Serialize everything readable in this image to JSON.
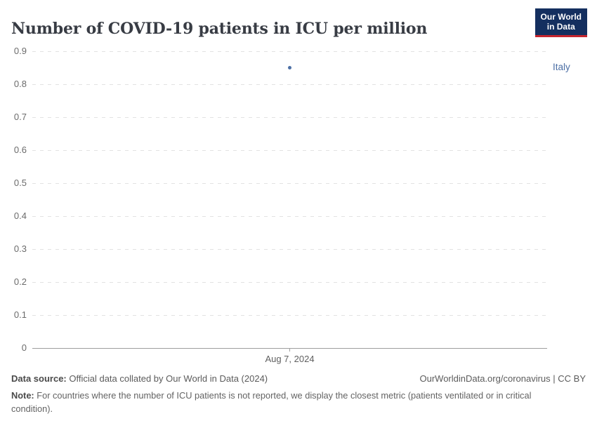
{
  "header": {
    "title": "Number of COVID-19 patients in ICU per million",
    "logo": {
      "line1": "Our World",
      "line2": "in Data"
    }
  },
  "chart_data": {
    "type": "scatter",
    "title": "Number of COVID-19 patients in ICU per million",
    "series": [
      {
        "name": "Italy",
        "color": "#4C6FA5",
        "points": [
          {
            "x": "Aug 7, 2024",
            "y": 0.85
          }
        ]
      }
    ],
    "ylim": [
      0,
      0.9
    ],
    "yticks": [
      0,
      0.1,
      0.2,
      0.3,
      0.4,
      0.5,
      0.6,
      0.7,
      0.8,
      0.9
    ],
    "xticks": [
      "Aug 7, 2024"
    ],
    "xlabel": "",
    "ylabel": "",
    "grid": "horizontal-dashed",
    "legend_position": "right-of-plot-inline-label"
  },
  "colors": {
    "series_blue": "#4C6FA5",
    "logo_navy": "#142f5f",
    "logo_red": "#c5252e",
    "grid_gray": "#e2e2e2",
    "axis_gray": "#9e9e9e",
    "title_dark": "#383c44",
    "footer_gray": "#5b5b5b"
  },
  "footer": {
    "source_label": "Data source:",
    "source_text": " Official data collated by Our World in Data (2024)",
    "attribution": "OurWorldinData.org/coronavirus | CC BY",
    "note_label": "Note:",
    "note_text": " For countries where the number of ICU patients is not reported, we display the closest metric (patients ventilated or in critical condition)."
  }
}
